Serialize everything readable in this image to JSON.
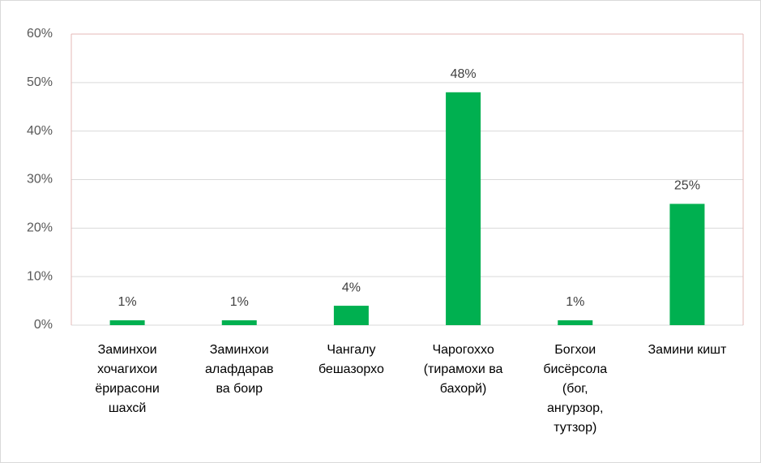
{
  "chart_data": {
    "type": "bar",
    "categories": [
      [
        "Заминхои",
        "хочагихои",
        "ёрирасони",
        "шахсй"
      ],
      [
        "Заминхои",
        "алафдарав",
        "ва боир"
      ],
      [
        "Чангалу",
        "бешазорхо"
      ],
      [
        "Чарогоххо",
        "(тирамохи ва",
        "бахорй)"
      ],
      [
        "Богхои",
        "бисёрсола",
        "(бог,",
        "ангурзор,",
        "тутзор)"
      ],
      [
        "Замини кишт"
      ]
    ],
    "values": [
      1,
      1,
      4,
      48,
      1,
      25
    ],
    "value_labels": [
      "1%",
      "1%",
      "4%",
      "48%",
      "1%",
      "25%"
    ],
    "color": "#00b050",
    "ylim": [
      0,
      60
    ],
    "yticks": [
      {
        "value": 0,
        "label": "0%"
      },
      {
        "value": 10,
        "label": "10%"
      },
      {
        "value": 20,
        "label": "20%"
      },
      {
        "value": 30,
        "label": "30%"
      },
      {
        "value": 40,
        "label": "40%"
      },
      {
        "value": 50,
        "label": "50%"
      },
      {
        "value": 60,
        "label": "60%"
      }
    ],
    "grid": true
  }
}
